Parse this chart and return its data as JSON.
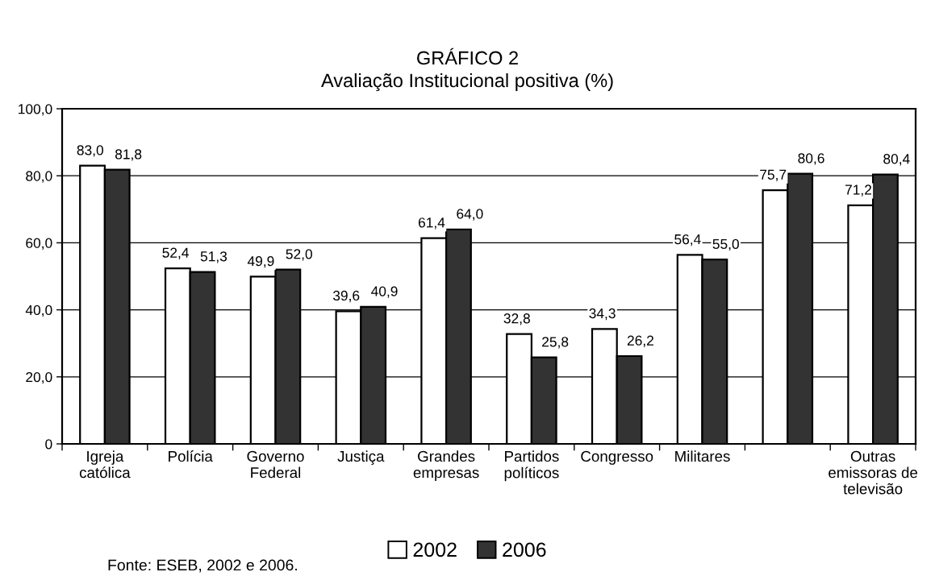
{
  "chart_data": {
    "type": "bar",
    "title": "GRÁFICO 2",
    "subtitle": "Avaliação Institucional positiva (%)",
    "categories": [
      "Igreja\ncatólica",
      "Polícia",
      "Governo\nFederal",
      "Justiça",
      "Grandes\nempresas",
      "Partidos\npolíticos",
      "Congresso",
      "Militares",
      null,
      "Outras\nemissoras de\ntelevisão"
    ],
    "series": [
      {
        "name": "2002",
        "color": "#ffffff",
        "values": [
          83.0,
          52.4,
          49.9,
          39.6,
          61.4,
          32.8,
          34.3,
          56.4,
          75.7,
          71.2
        ],
        "value_labels": [
          "83,0",
          "52,4",
          "49,9",
          "39,6",
          "61,4",
          "32,8",
          "34,3",
          "56,4",
          "75,7",
          "71,2"
        ]
      },
      {
        "name": "2006",
        "color": "#333333",
        "values": [
          81.8,
          51.3,
          52.0,
          40.9,
          64.0,
          25.8,
          26.2,
          55.0,
          80.6,
          80.4
        ],
        "value_labels": [
          "81,8",
          "51,3",
          "52,0",
          "40,9",
          "64,0",
          "25,8",
          "26,2",
          "55,0",
          "80,6",
          "80,4"
        ]
      }
    ],
    "ylim": [
      0,
      100
    ],
    "yticks": [
      0,
      {
        "value": 20,
        "label": "20,0"
      },
      {
        "value": 40,
        "label": "40,0"
      },
      {
        "value": 60,
        "label": "60,0"
      },
      {
        "value": 80,
        "label": "80,0"
      },
      {
        "value": 100,
        "label": "100,0"
      }
    ],
    "grid": "y",
    "legend": "bottom",
    "annotations": [
      "Fonte: ESEB, 2002 e 2006."
    ]
  }
}
